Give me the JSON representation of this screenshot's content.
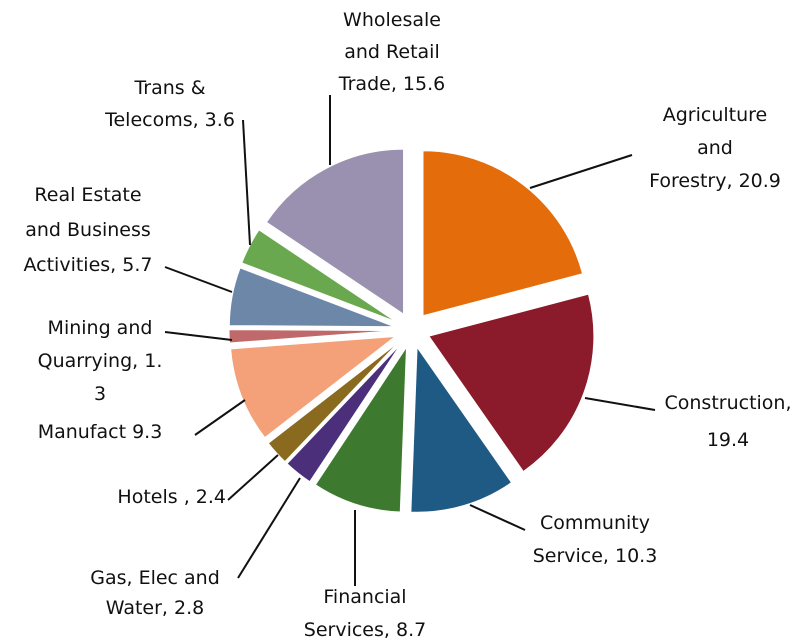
{
  "chart_data": {
    "type": "pie",
    "categories": [
      "Agriculture\nand\nForestry, 20.9",
      "Construction,\n19.4",
      "Community\nService, 10.3",
      "Financial\nServices, 8.7",
      "Gas, Elec and\nWater, 2.8",
      "Hotels , 2.4",
      "Manufact 9.3",
      "Mining and\nQuarrying, 1.\n3",
      "Real Estate\nand Business\nActivities, 5.7",
      "Trans &\nTelecoms, 3.6",
      "Wholesale\nand Retail\nTrade, 15.6"
    ],
    "values": [
      20.9,
      19.4,
      10.3,
      8.7,
      2.8,
      2.4,
      9.3,
      1.3,
      5.7,
      3.6,
      15.6
    ],
    "colors": [
      "#e46c0a",
      "#8b1a2a",
      "#1f5a85",
      "#3d7a2f",
      "#4b2f7a",
      "#8a6a1e",
      "#f4a079",
      "#c0696a",
      "#6c87a8",
      "#6aa84f",
      "#9a90b0"
    ]
  }
}
